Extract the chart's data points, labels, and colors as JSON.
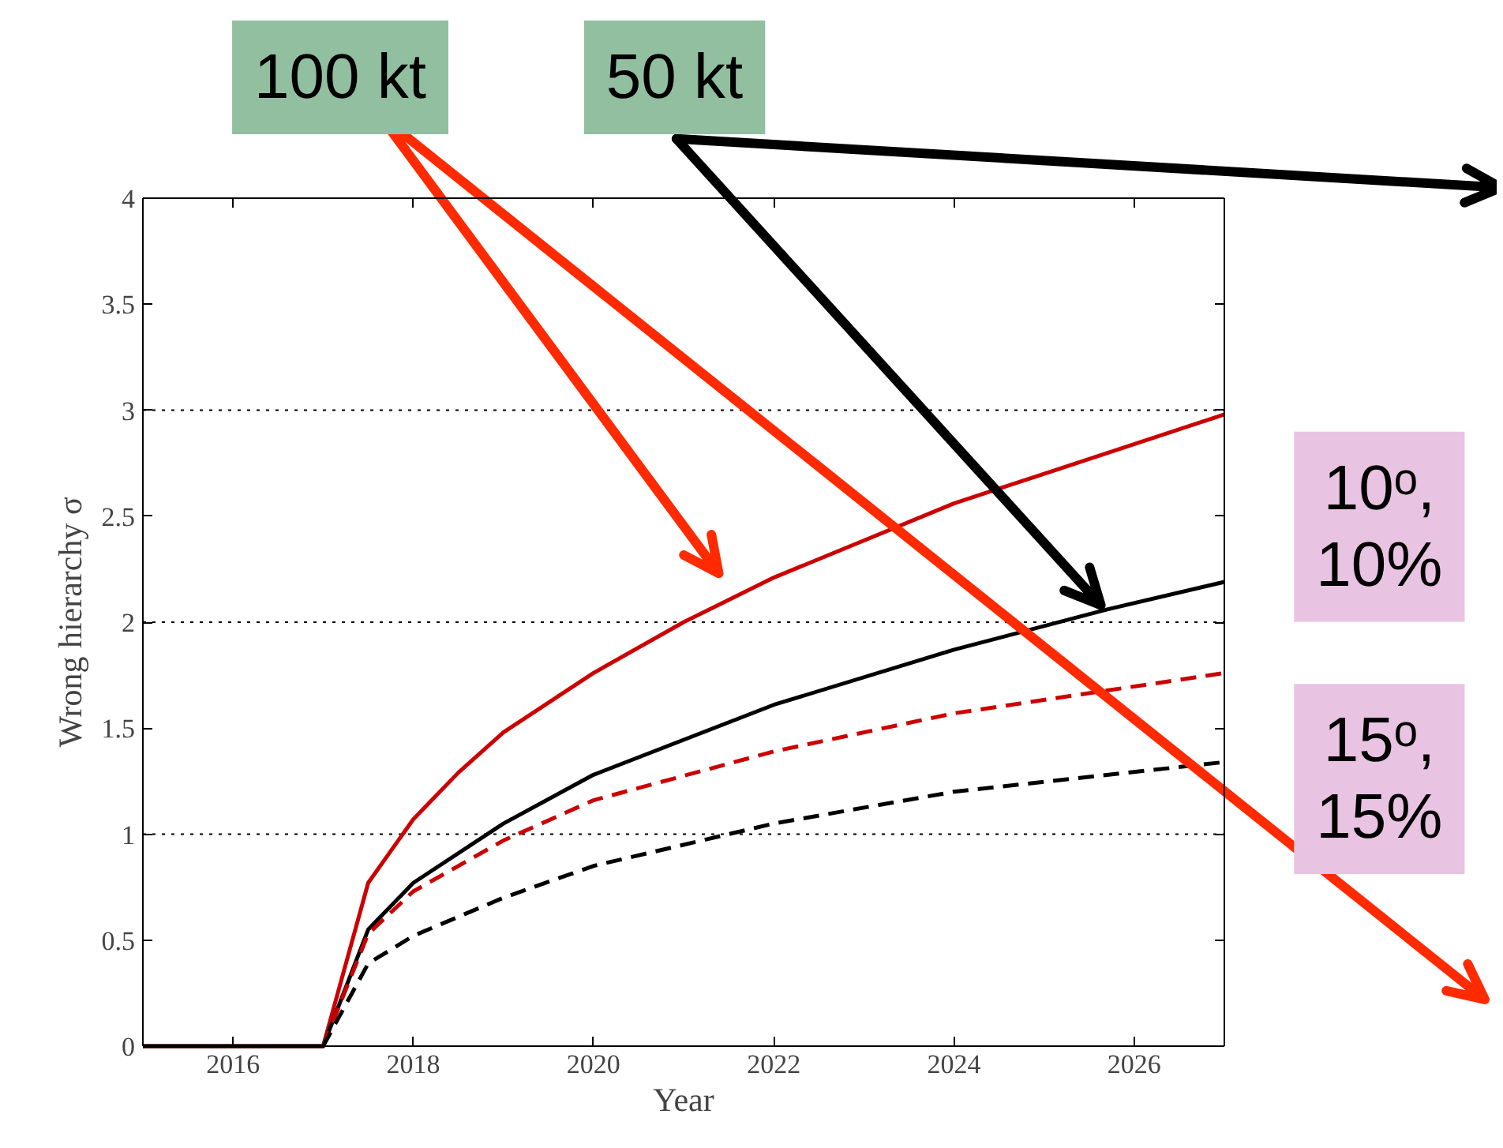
{
  "chart_data": {
    "type": "line",
    "xlabel": "Year",
    "ylabel": "Wrong hierarchy σ",
    "xlim": [
      2015,
      2027
    ],
    "xticks": [
      2016,
      2018,
      2020,
      2022,
      2024,
      2026
    ],
    "ylim": [
      0,
      4
    ],
    "yticks": [
      0,
      0.5,
      1,
      1.5,
      2,
      2.5,
      3,
      3.5,
      4
    ],
    "grid": false,
    "ref_lines": [
      {
        "axis": "y",
        "value": 1,
        "line_style": "dotted",
        "color": "#000000"
      },
      {
        "axis": "y",
        "value": 2,
        "line_style": "dotted",
        "color": "#000000"
      },
      {
        "axis": "y",
        "value": 3,
        "line_style": "dotted",
        "color": "#000000"
      }
    ],
    "series": [
      {
        "color": "#cc0000",
        "line_style": "solid",
        "x": [
          2015,
          2017,
          2017.5,
          2018,
          2018.5,
          2019,
          2020,
          2021,
          2022,
          2024,
          2025,
          2027
        ],
        "values": [
          0,
          0,
          0.77,
          1.07,
          1.29,
          1.48,
          1.76,
          2.0,
          2.21,
          2.56,
          2.7,
          2.98
        ]
      },
      {
        "color": "#000000",
        "line_style": "solid",
        "x": [
          2015,
          2017,
          2017.5,
          2018,
          2019,
          2020,
          2022,
          2024,
          2025.7,
          2027
        ],
        "values": [
          0,
          0,
          0.55,
          0.77,
          1.05,
          1.28,
          1.61,
          1.87,
          2.06,
          2.19
        ]
      },
      {
        "color": "#cc0000",
        "line_style": "dashed",
        "x": [
          2017,
          2017.5,
          2018,
          2019,
          2020,
          2022,
          2024,
          2027
        ],
        "values": [
          0,
          0.53,
          0.73,
          0.97,
          1.16,
          1.39,
          1.57,
          1.76
        ]
      },
      {
        "color": "#000000",
        "line_style": "dashed",
        "x": [
          2017,
          2017.5,
          2018,
          2019,
          2020,
          2022,
          2024,
          2027
        ],
        "values": [
          0,
          0.39,
          0.52,
          0.7,
          0.85,
          1.05,
          1.2,
          1.34
        ]
      }
    ],
    "annotations": [
      "100 kt",
      "50 kt",
      "10ᵒ,\n10%",
      "15ᵒ,\n15%"
    ]
  }
}
